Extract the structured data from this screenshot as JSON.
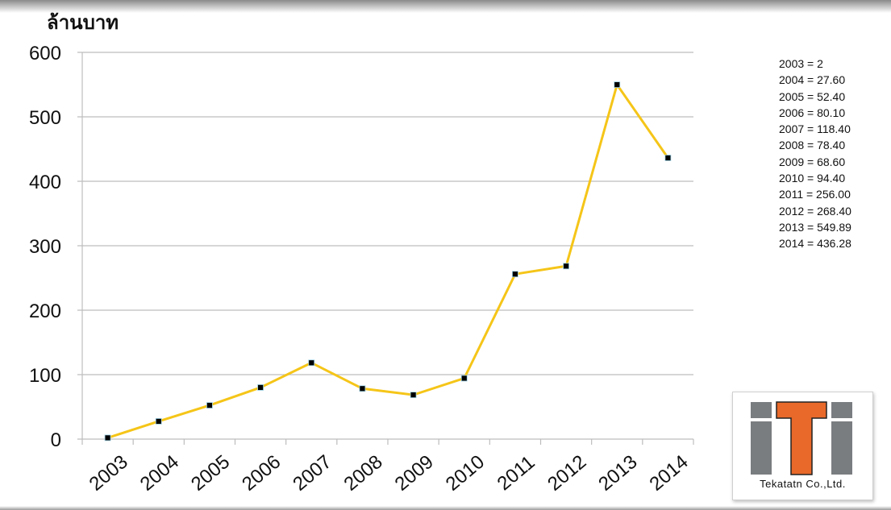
{
  "chart_data": {
    "type": "line",
    "title": "",
    "ylabel": "ล้านบาท",
    "xlabel": "",
    "x": [
      "2003",
      "2004",
      "2005",
      "2006",
      "2007",
      "2008",
      "2009",
      "2010",
      "2011",
      "2012",
      "2013",
      "2014"
    ],
    "values": [
      2,
      27.6,
      52.4,
      80.1,
      118.4,
      78.4,
      68.6,
      94.4,
      256.0,
      268.4,
      549.89,
      436.28
    ],
    "ylim": [
      0,
      600
    ],
    "yticks": [
      "0",
      "100",
      "200",
      "300",
      "400",
      "500",
      "600"
    ],
    "grid": true,
    "line_color": "#f5c518",
    "marker_color": "#000000",
    "legend_placement": "top-right",
    "value_list": [
      "2003 = 2",
      "2004 = 27.60",
      "2005 = 52.40",
      "2006 = 80.10",
      "2007 = 118.40",
      "2008 = 78.40",
      "2009 = 68.60",
      "2010 = 94.40",
      "2011 = 256.00",
      "2012 = 268.40",
      "2013 = 549.89",
      "2014 = 436.28"
    ]
  },
  "logo": {
    "text": "Tekatatn Co.,Ltd.",
    "accent_color": "#e8692a",
    "gray_color": "#7a7d80"
  }
}
